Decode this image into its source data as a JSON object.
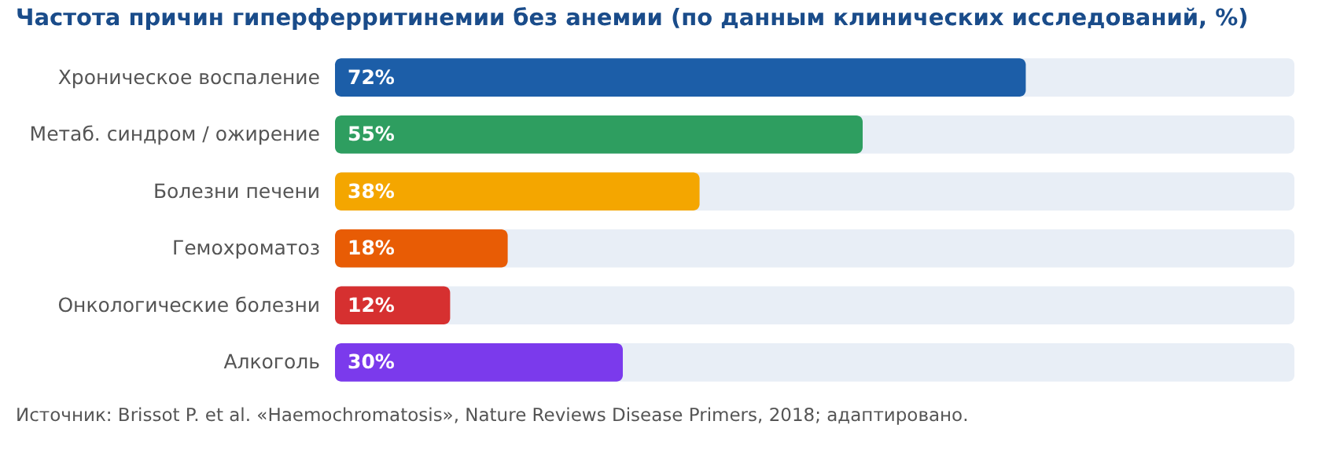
{
  "chart_data": {
    "type": "bar",
    "orientation": "horizontal",
    "title": "Частота причин гиперферритинемии без анемии (по данным клинических исследований, %)",
    "categories": [
      "Хроническое воспаление",
      "Метаб. синдром / ожирение",
      "Болезни печени",
      "Гемохроматоз",
      "Онкологические болезни",
      "Алкоголь"
    ],
    "values": [
      72,
      55,
      38,
      18,
      12,
      30
    ],
    "colors": [
      "#1c5ea8",
      "#2e9e60",
      "#f4a600",
      "#e85c05",
      "#d63030",
      "#7b3aec"
    ],
    "value_labels": [
      "72%",
      "55%",
      "38%",
      "18%",
      "12%",
      "30%"
    ],
    "xlim": [
      0,
      100
    ],
    "annotations": [
      "Источник: Brissot P. et al. «Haemochromatosis», Nature Reviews Disease Primers, 2018; адаптировано."
    ]
  }
}
